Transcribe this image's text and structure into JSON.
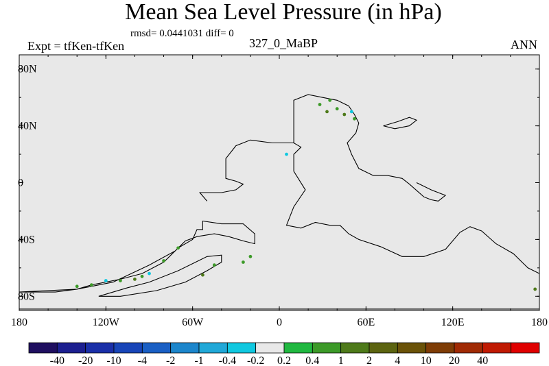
{
  "chart_data": {
    "type": "heatmap",
    "title": "Mean Sea Level Pressure (in hPa)",
    "stats": "rmsd= 0.0441031 diff= 0",
    "left_label": "Expt = tfKen-tfKen",
    "center_label": "327_0_MaBP",
    "right_label": "ANN",
    "x_ticks": [
      {
        "value": -180,
        "label": "180"
      },
      {
        "value": -120,
        "label": "120W"
      },
      {
        "value": -60,
        "label": "60W"
      },
      {
        "value": 0,
        "label": "0"
      },
      {
        "value": 60,
        "label": "60E"
      },
      {
        "value": 120,
        "label": "120E"
      },
      {
        "value": 180,
        "label": "180"
      }
    ],
    "y_ticks": [
      {
        "value": 80,
        "label": "80N"
      },
      {
        "value": 40,
        "label": "40N"
      },
      {
        "value": 0,
        "label": "0"
      },
      {
        "value": -40,
        "label": "40S"
      },
      {
        "value": -80,
        "label": "80S"
      }
    ],
    "xlim": [
      -180,
      180
    ],
    "ylim": [
      -90,
      90
    ],
    "field_color": "#e8e8e8",
    "colorbar": {
      "colors": [
        "#1f0f60",
        "#1c1f90",
        "#1a2fa8",
        "#1845b8",
        "#1a5fc4",
        "#1c86cc",
        "#20a8d8",
        "#10c8e0",
        "#e8e8e8",
        "#20b840",
        "#3c9a28",
        "#4e7a1a",
        "#5c6410",
        "#6a5208",
        "#7e3c06",
        "#a02a04",
        "#c01a02",
        "#e00000"
      ],
      "labels": [
        "-40",
        "-20",
        "-10",
        "-4",
        "-2",
        "-1",
        "-0.4",
        "-0.2",
        "0.2",
        "0.4",
        "1",
        "2",
        "4",
        "10",
        "20",
        "40"
      ]
    },
    "coastlines": [
      [
        [
          -180,
          -77
        ],
        [
          -155,
          -77
        ],
        [
          -140,
          -75
        ],
        [
          -130,
          -72
        ],
        [
          -110,
          -68
        ],
        [
          -95,
          -64
        ],
        [
          -80,
          -56
        ],
        [
          -70,
          -46
        ],
        [
          -60,
          -40
        ],
        [
          -57,
          -33
        ],
        [
          -53,
          -33
        ],
        [
          -53,
          -27
        ],
        [
          -40,
          -29
        ],
        [
          -25,
          -29
        ],
        [
          -17,
          -36
        ],
        [
          -17,
          -43
        ],
        [
          -25,
          -41
        ],
        [
          -35,
          -38
        ],
        [
          -45,
          -36
        ],
        [
          -57,
          -38
        ],
        [
          -65,
          -41
        ],
        [
          -72,
          -48
        ],
        [
          -90,
          -58
        ],
        [
          -115,
          -70
        ],
        [
          -140,
          -75
        ],
        [
          -180,
          -77
        ]
      ],
      [
        [
          -125,
          -80
        ],
        [
          -105,
          -74
        ],
        [
          -90,
          -70
        ],
        [
          -70,
          -62
        ],
        [
          -50,
          -52
        ],
        [
          -40,
          -51
        ],
        [
          -40,
          -56
        ],
        [
          -50,
          -62
        ],
        [
          -65,
          -70
        ],
        [
          -85,
          -76
        ],
        [
          -110,
          -80
        ],
        [
          -125,
          -80
        ]
      ],
      [
        [
          -50,
          -13
        ],
        [
          -55,
          -7
        ],
        [
          -40,
          -7
        ],
        [
          -30,
          -5
        ],
        [
          -25,
          -1
        ],
        [
          -30,
          1
        ],
        [
          -37,
          3
        ],
        [
          -37,
          17
        ],
        [
          -30,
          26
        ],
        [
          -20,
          30
        ],
        [
          -5,
          28
        ],
        [
          10,
          28
        ],
        [
          15,
          25
        ],
        [
          10,
          20
        ],
        [
          10,
          8
        ],
        [
          18,
          -5
        ],
        [
          10,
          -17
        ],
        [
          5,
          -30
        ],
        [
          15,
          -32
        ],
        [
          25,
          -28
        ],
        [
          35,
          -30
        ],
        [
          42,
          -30
        ],
        [
          48,
          -36
        ],
        [
          55,
          -40
        ],
        [
          70,
          -45
        ],
        [
          85,
          -52
        ],
        [
          100,
          -52
        ],
        [
          115,
          -47
        ],
        [
          125,
          -35
        ],
        [
          132,
          -31
        ],
        [
          140,
          -34
        ],
        [
          150,
          -43
        ],
        [
          162,
          -50
        ],
        [
          172,
          -60
        ],
        [
          180,
          -64
        ]
      ],
      [
        [
          10,
          28
        ],
        [
          10,
          58
        ],
        [
          20,
          62
        ],
        [
          30,
          60
        ],
        [
          40,
          58
        ],
        [
          48,
          54
        ],
        [
          52,
          48
        ],
        [
          55,
          42
        ],
        [
          53,
          35
        ],
        [
          47,
          28
        ],
        [
          50,
          20
        ],
        [
          55,
          10
        ],
        [
          65,
          5
        ],
        [
          75,
          5
        ],
        [
          85,
          3
        ],
        [
          90,
          -1
        ],
        [
          100,
          -10
        ],
        [
          105,
          -12
        ],
        [
          110,
          -13
        ],
        [
          115,
          -9
        ],
        [
          105,
          -5
        ],
        [
          95,
          0
        ]
      ],
      [
        [
          72,
          40
        ],
        [
          82,
          43
        ],
        [
          90,
          46
        ],
        [
          95,
          44
        ],
        [
          90,
          40
        ],
        [
          80,
          38
        ],
        [
          72,
          40
        ]
      ],
      [
        [
          -180,
          -89
        ],
        [
          180,
          -89
        ]
      ]
    ],
    "anomalies": [
      {
        "x": 28,
        "y": 55,
        "value": 0.4
      },
      {
        "x": 33,
        "y": 50,
        "value": 1
      },
      {
        "x": 40,
        "y": 52,
        "value": 0.4
      },
      {
        "x": 45,
        "y": 48,
        "value": 1
      },
      {
        "x": 50,
        "y": 50,
        "value": -0.4
      },
      {
        "x": 52,
        "y": 45,
        "value": 0.4
      },
      {
        "x": 35,
        "y": 58,
        "value": 0.4
      },
      {
        "x": -70,
        "y": -46,
        "value": 0.4
      },
      {
        "x": -80,
        "y": -55,
        "value": 0.4
      },
      {
        "x": -90,
        "y": -64,
        "value": -0.4
      },
      {
        "x": -95,
        "y": -66,
        "value": 0.4
      },
      {
        "x": -100,
        "y": -68,
        "value": 1
      },
      {
        "x": -110,
        "y": -69,
        "value": 0.4
      },
      {
        "x": -120,
        "y": -69,
        "value": -0.4
      },
      {
        "x": -130,
        "y": -72,
        "value": 0.4
      },
      {
        "x": -140,
        "y": -73,
        "value": 0.4
      },
      {
        "x": -53,
        "y": -65,
        "value": 1
      },
      {
        "x": -45,
        "y": -58,
        "value": 0.4
      },
      {
        "x": -25,
        "y": -56,
        "value": 0.4
      },
      {
        "x": -20,
        "y": -52,
        "value": 0.4
      },
      {
        "x": 177,
        "y": -75,
        "value": 1
      },
      {
        "x": 5,
        "y": 20,
        "value": -0.4
      }
    ]
  }
}
